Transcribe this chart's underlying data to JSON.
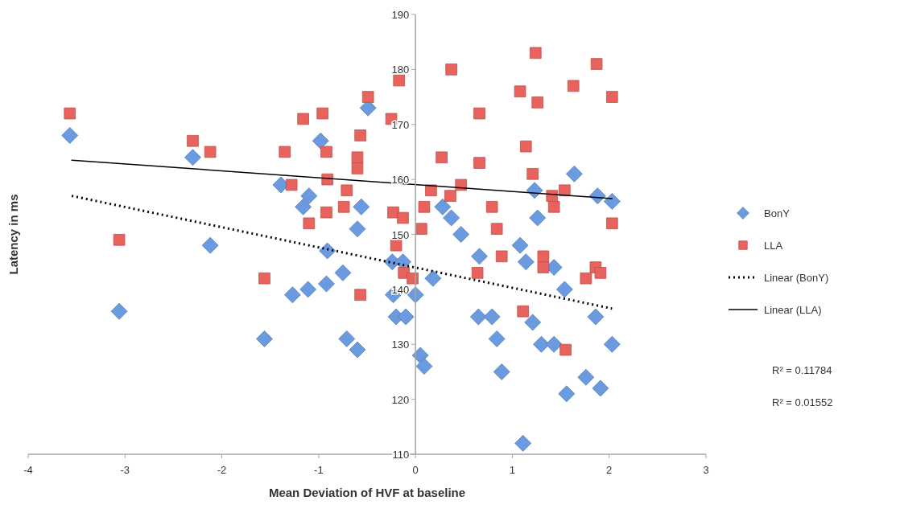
{
  "chart_data": {
    "type": "scatter",
    "xlabel": "Mean Deviation of HVF at baseline",
    "ylabel": "Latency in ms",
    "xlim": [
      -4,
      3
    ],
    "xticks": [
      -4,
      -3,
      -2,
      -1,
      0,
      1,
      2,
      3
    ],
    "ylim": [
      110,
      190
    ],
    "yticks": [
      110,
      120,
      130,
      140,
      150,
      160,
      170,
      180,
      190
    ],
    "grid": false,
    "legend": "right",
    "series": [
      {
        "name": "BonY",
        "marker": "diamond",
        "color": "#6a9be0",
        "x": [
          -3.57,
          -3.06,
          -2.3,
          -2.12,
          -1.56,
          -1.39,
          -1.27,
          -1.16,
          -1.1,
          -1.11,
          -0.98,
          -0.91,
          -0.92,
          -0.75,
          -0.71,
          -0.6,
          -0.6,
          -0.56,
          -0.49,
          -0.24,
          -0.13,
          -0.23,
          -0.2,
          -0.1,
          0.0,
          0.05,
          0.09,
          0.18,
          0.28,
          0.37,
          0.47,
          0.65,
          0.66,
          0.79,
          0.84,
          0.89,
          1.08,
          1.11,
          1.14,
          1.21,
          1.23,
          1.26,
          1.3,
          1.43,
          1.43,
          1.54,
          1.56,
          1.64,
          1.76,
          1.86,
          1.88,
          1.91,
          2.03,
          2.03
        ],
        "values": [
          168,
          136,
          164,
          148,
          131,
          159,
          139,
          155,
          157,
          140,
          167,
          147,
          141,
          143,
          131,
          151,
          129,
          155,
          173,
          145,
          145,
          139,
          135,
          135,
          139,
          128,
          126,
          142,
          155,
          153,
          150,
          135,
          146,
          135,
          131,
          125,
          148,
          112,
          145,
          134,
          158,
          153,
          130,
          130,
          144,
          140,
          121,
          161,
          124,
          135,
          157,
          122,
          156,
          130
        ]
      },
      {
        "name": "LLA",
        "marker": "square",
        "color": "#e8635d",
        "x": [
          -3.57,
          -3.06,
          -2.3,
          -2.12,
          -1.56,
          -1.35,
          -1.28,
          -1.16,
          -1.1,
          -0.96,
          -0.92,
          -0.91,
          -0.92,
          -0.71,
          -0.74,
          -0.57,
          -0.6,
          -0.6,
          -0.57,
          -0.49,
          -0.25,
          -0.17,
          -0.23,
          -0.13,
          -0.2,
          -0.12,
          -0.03,
          0.06,
          0.09,
          0.16,
          0.27,
          0.36,
          0.37,
          0.47,
          0.64,
          0.66,
          0.66,
          0.79,
          0.84,
          0.89,
          1.08,
          1.11,
          1.14,
          1.21,
          1.24,
          1.26,
          1.32,
          1.32,
          1.41,
          1.43,
          1.54,
          1.55,
          1.63,
          1.76,
          1.86,
          1.87,
          1.91,
          2.03,
          2.03
        ],
        "values": [
          172,
          149,
          167,
          165,
          142,
          165,
          159,
          171,
          152,
          172,
          165,
          160,
          154,
          158,
          155,
          168,
          164,
          162,
          139,
          175,
          171,
          178,
          154,
          153,
          148,
          143,
          142,
          151,
          155,
          158,
          164,
          157,
          180,
          159,
          143,
          172,
          163,
          155,
          151,
          146,
          176,
          136,
          166,
          161,
          183,
          174,
          146,
          144,
          157,
          155,
          158,
          129,
          177,
          142,
          144,
          181,
          143,
          175,
          152
        ]
      },
      {
        "name": "Linear (BonY)",
        "type": "line",
        "line_style": "dotted",
        "marker": "none",
        "color": "#000000",
        "x": [
          -3.55,
          2.03
        ],
        "values": [
          157,
          136.5
        ]
      },
      {
        "name": "Linear (LLA)",
        "type": "line",
        "line_style": "solid",
        "marker": "none",
        "color": "#000000",
        "x": [
          -3.55,
          2.03
        ],
        "values": [
          163.5,
          156.5
        ]
      }
    ],
    "annotations": [
      "R² = 0.11784",
      "R² = 0.01552"
    ]
  }
}
